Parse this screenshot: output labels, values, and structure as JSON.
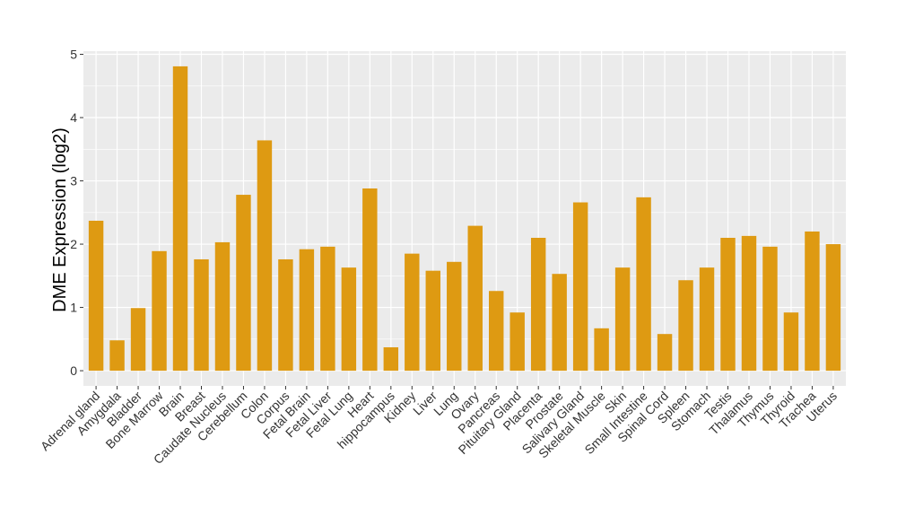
{
  "chart_data": {
    "type": "bar",
    "title": "",
    "xlabel": "",
    "ylabel": "DME Expression (log2)",
    "ylim": [
      -0.24,
      5.05
    ],
    "yticks": [
      0,
      1,
      2,
      3,
      4,
      5
    ],
    "grid": true,
    "bar_color": "#DE9A12",
    "panel_color": "#EBEBEB",
    "categories": [
      "Adrenal gland",
      "Amygdala",
      "Bladder",
      "Bone Marrow",
      "Brain",
      "Breast",
      "Caudate Nucleus",
      "Cerebellum",
      "Colon",
      "Corpus",
      "Fetal Brain",
      "Fetal Liver",
      "Fetal Lung",
      "Heart",
      "hippocampus",
      "Kidney",
      "Liver",
      "Lung",
      "Ovary",
      "Pancreas",
      "Pituitary Gland",
      "Placenta",
      "Prostate",
      "Salivary Gland",
      "Skeletal Muscle",
      "Skin",
      "Small Intestine",
      "Spinal Cord",
      "Spleen",
      "Stomach",
      "Testis",
      "Thalamus",
      "Thymus",
      "Thyroid",
      "Trachea",
      "Uterus"
    ],
    "values": [
      2.37,
      0.48,
      0.99,
      1.89,
      4.81,
      1.76,
      2.03,
      2.78,
      3.64,
      1.76,
      1.92,
      1.96,
      1.63,
      2.88,
      0.37,
      1.85,
      1.58,
      1.72,
      2.29,
      1.26,
      0.92,
      2.1,
      1.53,
      2.66,
      0.67,
      1.63,
      2.74,
      0.58,
      1.43,
      1.63,
      2.1,
      2.13,
      1.96,
      0.92,
      2.2,
      2.0
    ]
  }
}
